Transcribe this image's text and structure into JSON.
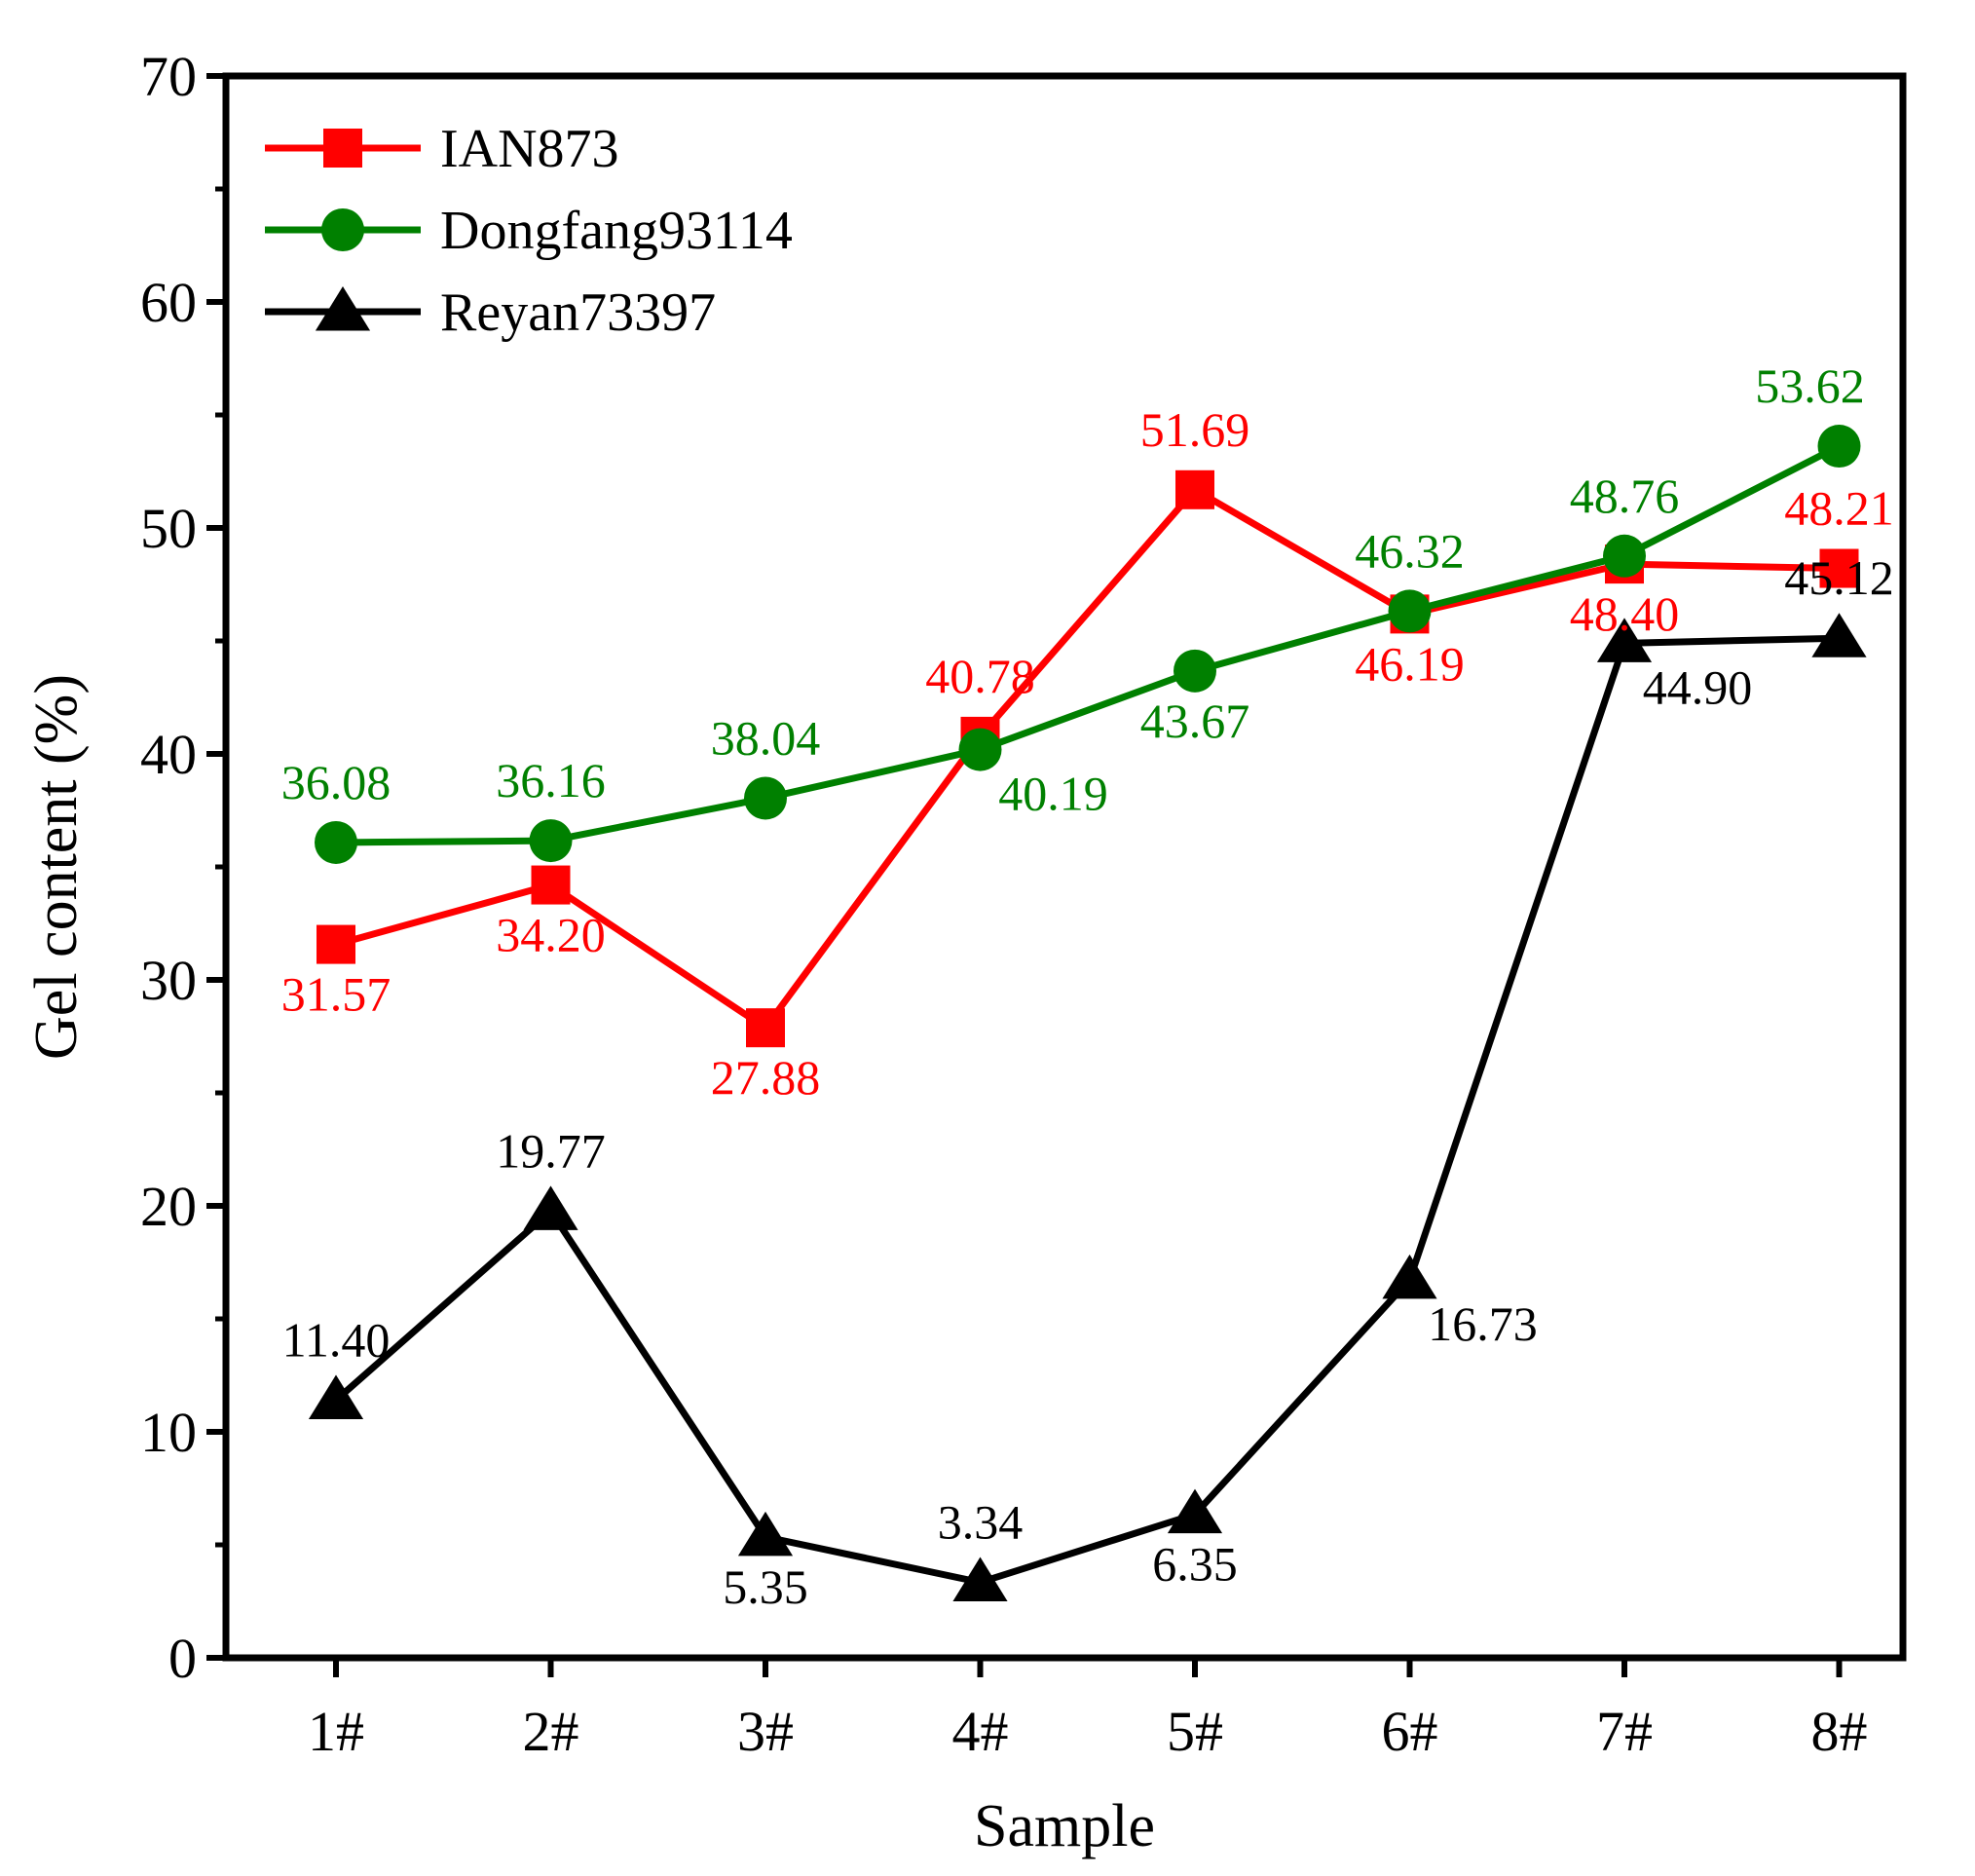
{
  "chart_data": {
    "type": "line",
    "title": "",
    "xlabel": "Sample",
    "ylabel": "Gel content (%)",
    "categories": [
      "1#",
      "2#",
      "3#",
      "4#",
      "5#",
      "6#",
      "7#",
      "8#"
    ],
    "ylim": [
      0,
      70
    ],
    "yticks": [
      0,
      10,
      20,
      30,
      40,
      50,
      60,
      70
    ],
    "ytick_labels": [
      "0",
      "10",
      "20",
      "30",
      "40",
      "50",
      "60",
      "70"
    ],
    "grid": false,
    "legend_position": "top-left",
    "series": [
      {
        "name": "IAN873",
        "color": "#ff0000",
        "marker": "square",
        "values": [
          31.57,
          34.2,
          27.88,
          40.78,
          51.69,
          46.19,
          48.4,
          48.21
        ],
        "labels": [
          "31.57",
          "34.20",
          "27.88",
          "40.78",
          "51.69",
          "46.19",
          "48.40",
          "48.21"
        ],
        "label_placement": [
          "below",
          "below",
          "below",
          "above",
          "above",
          "below",
          "below",
          "above"
        ]
      },
      {
        "name": "Dongfang93114",
        "color": "#008000",
        "marker": "circle",
        "values": [
          36.08,
          36.16,
          38.04,
          40.19,
          43.67,
          46.32,
          48.76,
          53.62
        ],
        "labels": [
          "36.08",
          "36.16",
          "38.04",
          "40.19",
          "43.67",
          "46.32",
          "48.76",
          "53.62"
        ],
        "label_placement": [
          "above",
          "above",
          "above",
          "below-right",
          "below",
          "above",
          "above",
          "above-left"
        ]
      },
      {
        "name": "Reyan73397",
        "color": "#000000",
        "marker": "triangle",
        "values": [
          11.4,
          19.77,
          5.35,
          3.34,
          6.35,
          16.73,
          44.9,
          45.12
        ],
        "labels": [
          "11.40",
          "19.77",
          "5.35",
          "3.34",
          "6.35",
          "16.73",
          "44.90",
          "45.12"
        ],
        "label_placement": [
          "above",
          "above",
          "below",
          "above",
          "below",
          "below-right",
          "below-right",
          "above"
        ]
      }
    ]
  }
}
